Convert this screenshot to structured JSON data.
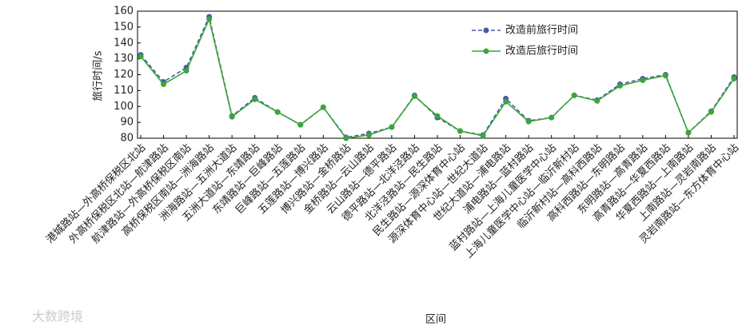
{
  "chart_data": {
    "type": "line",
    "y_label": "旅行时间/s",
    "x_label": "区间",
    "watermark": "大数跨境",
    "categories": [
      "港城路站—外高桥保税区北站",
      "外高桥保税区北站—航津路站",
      "航津路站—外高桥保税区南站",
      "高桥保税区南站—洲海路站",
      "洲海路站—五洲大道站",
      "五洲大道站—东靖路站",
      "东靖路站—巨峰路站",
      "巨峰路站—五莲路站",
      "五莲路站—博兴路站",
      "博兴路站—金桥路站",
      "金桥路站—云山路站",
      "云山路站—德平路站",
      "德平路站—北洋泾路站",
      "北洋泾路站—民生路站",
      "民生路站—源深体育中心站",
      "源深体育中心站—世纪大道站",
      "世纪大道站—浦电路站",
      "浦电路站—蓝村路站",
      "蓝村路站—上海儿童医学中心站",
      "上海儿童医学中心站—临沂新村站",
      "临沂新村站—高科西路站",
      "高科西路站—东明路站",
      "东明路站—高青路站",
      "高青路站—华夏西路站",
      "华夏西路站—上南路站",
      "上南路站—灵岩南路站",
      "灵岩南路站—东方体育中心站"
    ],
    "series": [
      {
        "name": "改造前旅行时间",
        "color": "#4a5aa8",
        "dashed": true,
        "values": [
          132.5,
          115.5,
          124.5,
          156.5,
          94,
          105.5,
          96.5,
          88.5,
          99.5,
          80.5,
          83,
          87,
          107,
          93,
          84.5,
          82,
          105,
          91,
          93,
          107,
          104,
          114,
          117.5,
          120,
          83.5,
          97,
          118.5
        ]
      },
      {
        "name": "改造后旅行时间",
        "color": "#3aa63a",
        "dashed": false,
        "values": [
          131.5,
          114,
          122.5,
          155,
          93.5,
          104.5,
          96.5,
          88.5,
          99.5,
          80,
          82,
          87,
          106.5,
          94,
          84.5,
          81.5,
          103,
          90.5,
          93,
          107,
          103.5,
          113,
          116.5,
          119.5,
          83.5,
          96.5,
          117.5
        ]
      }
    ],
    "ylim": [
      80,
      160
    ],
    "yticks": [
      80,
      90,
      100,
      110,
      120,
      130,
      140,
      150,
      160
    ]
  }
}
